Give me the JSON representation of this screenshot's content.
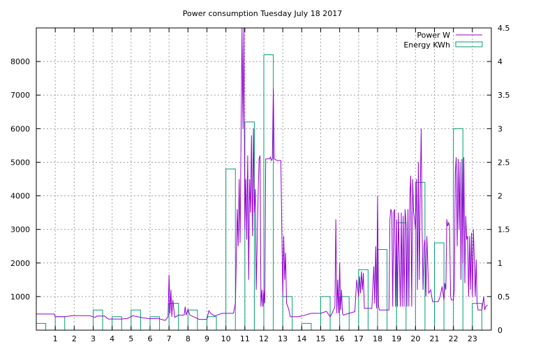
{
  "chart_data": {
    "type": "line",
    "title": "Power consumption Tuesday July 18 2017",
    "xlim": [
      0,
      24
    ],
    "x_ticks": [
      1,
      2,
      3,
      4,
      5,
      6,
      7,
      8,
      9,
      10,
      11,
      12,
      13,
      14,
      15,
      16,
      17,
      18,
      19,
      20,
      21,
      22,
      23
    ],
    "y_left": {
      "ylim": [
        0,
        9000
      ],
      "ticks": [
        1000,
        2000,
        3000,
        4000,
        5000,
        6000,
        7000,
        8000
      ]
    },
    "y_right": {
      "ylim": [
        0,
        4.5
      ],
      "ticks": [
        0,
        0.5,
        1,
        1.5,
        2,
        2.5,
        3,
        3.5,
        4,
        4.5
      ]
    },
    "grid": true,
    "legend_position": "top-right",
    "colors": {
      "power": "#9400d3",
      "energy": "#009e73"
    },
    "series": [
      {
        "name": "Power W",
        "axis": "left",
        "style": "line",
        "points": [
          [
            0,
            480
          ],
          [
            0.95,
            480
          ],
          [
            1.0,
            400
          ],
          [
            1.5,
            400
          ],
          [
            1.9,
            430
          ],
          [
            2.8,
            430
          ],
          [
            3.0,
            400
          ],
          [
            3.1,
            380
          ],
          [
            3.2,
            420
          ],
          [
            3.6,
            420
          ],
          [
            3.8,
            330
          ],
          [
            4.5,
            330
          ],
          [
            4.8,
            350
          ],
          [
            5.1,
            430
          ],
          [
            5.6,
            370
          ],
          [
            6.0,
            340
          ],
          [
            6.4,
            350
          ],
          [
            6.8,
            290
          ],
          [
            6.95,
            400
          ],
          [
            7.0,
            1650
          ],
          [
            7.05,
            500
          ],
          [
            7.1,
            1200
          ],
          [
            7.15,
            400
          ],
          [
            7.2,
            900
          ],
          [
            7.3,
            380
          ],
          [
            7.5,
            450
          ],
          [
            7.8,
            450
          ],
          [
            7.85,
            700
          ],
          [
            7.9,
            450
          ],
          [
            8.0,
            620
          ],
          [
            8.1,
            450
          ],
          [
            8.3,
            400
          ],
          [
            8.6,
            320
          ],
          [
            9.0,
            320
          ],
          [
            9.1,
            580
          ],
          [
            9.2,
            500
          ],
          [
            9.4,
            420
          ],
          [
            9.8,
            500
          ],
          [
            10.4,
            500
          ],
          [
            10.5,
            800
          ],
          [
            10.6,
            3600
          ],
          [
            10.65,
            2500
          ],
          [
            10.7,
            4500
          ],
          [
            10.75,
            2600
          ],
          [
            10.85,
            9000
          ],
          [
            10.9,
            6000
          ],
          [
            10.95,
            9000
          ],
          [
            11.0,
            3000
          ],
          [
            11.05,
            4500
          ],
          [
            11.1,
            2700
          ],
          [
            11.15,
            5200
          ],
          [
            11.2,
            1500
          ],
          [
            11.25,
            4500
          ],
          [
            11.3,
            3500
          ],
          [
            11.35,
            5800
          ],
          [
            11.4,
            2800
          ],
          [
            11.45,
            6000
          ],
          [
            11.5,
            3500
          ],
          [
            11.55,
            4200
          ],
          [
            11.6,
            1200
          ],
          [
            11.7,
            4000
          ],
          [
            11.75,
            5100
          ],
          [
            11.8,
            5200
          ],
          [
            11.85,
            700
          ],
          [
            11.9,
            1200
          ],
          [
            11.95,
            700
          ],
          [
            12.0,
            1200
          ],
          [
            12.05,
            800
          ],
          [
            12.1,
            5100
          ],
          [
            12.3,
            5100
          ],
          [
            12.35,
            5150
          ],
          [
            12.4,
            5050
          ],
          [
            12.45,
            5100
          ],
          [
            12.5,
            7200
          ],
          [
            12.55,
            5100
          ],
          [
            12.7,
            5050
          ],
          [
            12.9,
            5050
          ],
          [
            12.95,
            3000
          ],
          [
            13.0,
            1000
          ],
          [
            13.05,
            2800
          ],
          [
            13.1,
            1500
          ],
          [
            13.15,
            2300
          ],
          [
            13.2,
            800
          ],
          [
            13.3,
            650
          ],
          [
            13.4,
            400
          ],
          [
            13.8,
            400
          ],
          [
            14.0,
            420
          ],
          [
            14.5,
            500
          ],
          [
            15.0,
            500
          ],
          [
            15.3,
            560
          ],
          [
            15.5,
            400
          ],
          [
            15.6,
            500
          ],
          [
            15.75,
            700
          ],
          [
            15.8,
            3300
          ],
          [
            15.85,
            500
          ],
          [
            15.9,
            1500
          ],
          [
            15.95,
            500
          ],
          [
            16.0,
            2000
          ],
          [
            16.05,
            600
          ],
          [
            16.1,
            1200
          ],
          [
            16.15,
            500
          ],
          [
            16.2,
            450
          ],
          [
            16.5,
            500
          ],
          [
            16.8,
            550
          ],
          [
            16.9,
            1500
          ],
          [
            17.0,
            1000
          ],
          [
            17.05,
            1600
          ],
          [
            17.1,
            1100
          ],
          [
            17.15,
            1750
          ],
          [
            17.2,
            1200
          ],
          [
            17.25,
            1700
          ],
          [
            17.3,
            650
          ],
          [
            17.4,
            650
          ],
          [
            17.7,
            650
          ],
          [
            17.8,
            1900
          ],
          [
            17.85,
            800
          ],
          [
            17.9,
            2500
          ],
          [
            17.95,
            650
          ],
          [
            18.0,
            4000
          ],
          [
            18.05,
            700
          ],
          [
            18.1,
            600
          ],
          [
            18.6,
            600
          ],
          [
            18.65,
            3300
          ],
          [
            18.7,
            3600
          ],
          [
            18.75,
            3500
          ],
          [
            18.8,
            700
          ],
          [
            18.85,
            3500
          ],
          [
            18.9,
            3600
          ],
          [
            18.95,
            700
          ],
          [
            19.0,
            3300
          ],
          [
            19.05,
            700
          ],
          [
            19.1,
            3500
          ],
          [
            19.2,
            700
          ],
          [
            19.25,
            3500
          ],
          [
            19.3,
            700
          ],
          [
            19.35,
            3400
          ],
          [
            19.4,
            700
          ],
          [
            19.45,
            3600
          ],
          [
            19.5,
            3200
          ],
          [
            19.55,
            700
          ],
          [
            19.6,
            3600
          ],
          [
            19.65,
            700
          ],
          [
            19.7,
            4000
          ],
          [
            19.75,
            4600
          ],
          [
            19.8,
            700
          ],
          [
            19.85,
            4500
          ],
          [
            19.9,
            3500
          ],
          [
            19.95,
            3300
          ],
          [
            20.0,
            3000
          ],
          [
            20.05,
            4500
          ],
          [
            20.1,
            1200
          ],
          [
            20.15,
            5000
          ],
          [
            20.2,
            1500
          ],
          [
            20.25,
            4000
          ],
          [
            20.3,
            6000
          ],
          [
            20.35,
            3000
          ],
          [
            20.4,
            1200
          ],
          [
            20.45,
            2500
          ],
          [
            20.5,
            2700
          ],
          [
            20.55,
            1000
          ],
          [
            20.6,
            2800
          ],
          [
            20.7,
            1100
          ],
          [
            20.8,
            1200
          ],
          [
            20.9,
            850
          ],
          [
            21.2,
            850
          ],
          [
            21.3,
            1000
          ],
          [
            21.4,
            1300
          ],
          [
            21.5,
            900
          ],
          [
            21.55,
            1400
          ],
          [
            21.6,
            1200
          ],
          [
            21.65,
            3300
          ],
          [
            21.7,
            3100
          ],
          [
            21.75,
            3200
          ],
          [
            21.8,
            3100
          ],
          [
            21.85,
            1000
          ],
          [
            21.9,
            900
          ],
          [
            22.0,
            900
          ],
          [
            22.05,
            1200
          ],
          [
            22.1,
            4700
          ],
          [
            22.15,
            5150
          ],
          [
            22.2,
            2500
          ],
          [
            22.25,
            5100
          ],
          [
            22.3,
            3000
          ],
          [
            22.35,
            5000
          ],
          [
            22.4,
            1500
          ],
          [
            22.45,
            5100
          ],
          [
            22.5,
            2000
          ],
          [
            22.55,
            5150
          ],
          [
            22.6,
            1400
          ],
          [
            22.65,
            3400
          ],
          [
            22.7,
            2700
          ],
          [
            22.75,
            2800
          ],
          [
            22.8,
            1000
          ],
          [
            22.85,
            2800
          ],
          [
            22.9,
            1200
          ],
          [
            22.95,
            2900
          ],
          [
            23.0,
            1000
          ],
          [
            23.05,
            3000
          ],
          [
            23.1,
            2100
          ],
          [
            23.15,
            1000
          ],
          [
            23.2,
            2100
          ],
          [
            23.25,
            800
          ],
          [
            23.3,
            600
          ],
          [
            23.5,
            600
          ],
          [
            23.6,
            1000
          ],
          [
            23.65,
            600
          ],
          [
            23.7,
            700
          ],
          [
            23.8,
            750
          ]
        ]
      },
      {
        "name": "Energy KWh",
        "axis": "right",
        "style": "steps",
        "bars": [
          [
            0,
            0.1
          ],
          [
            1,
            0.2
          ],
          [
            2,
            0
          ],
          [
            3,
            0.3
          ],
          [
            4,
            0.2
          ],
          [
            5,
            0.3
          ],
          [
            6,
            0.2
          ],
          [
            7,
            0.4
          ],
          [
            8,
            0.3
          ],
          [
            9,
            0.2
          ],
          [
            10,
            2.4
          ],
          [
            11,
            3.1
          ],
          [
            12,
            4.1
          ],
          [
            13,
            0.5
          ],
          [
            14,
            0.1
          ],
          [
            15,
            0.5
          ],
          [
            16,
            0.5
          ],
          [
            17,
            0.9
          ],
          [
            18,
            1.2
          ],
          [
            19,
            1.6
          ],
          [
            20,
            2.2
          ],
          [
            21,
            1.3
          ],
          [
            22,
            3.0
          ],
          [
            23,
            0.4
          ]
        ]
      }
    ]
  }
}
